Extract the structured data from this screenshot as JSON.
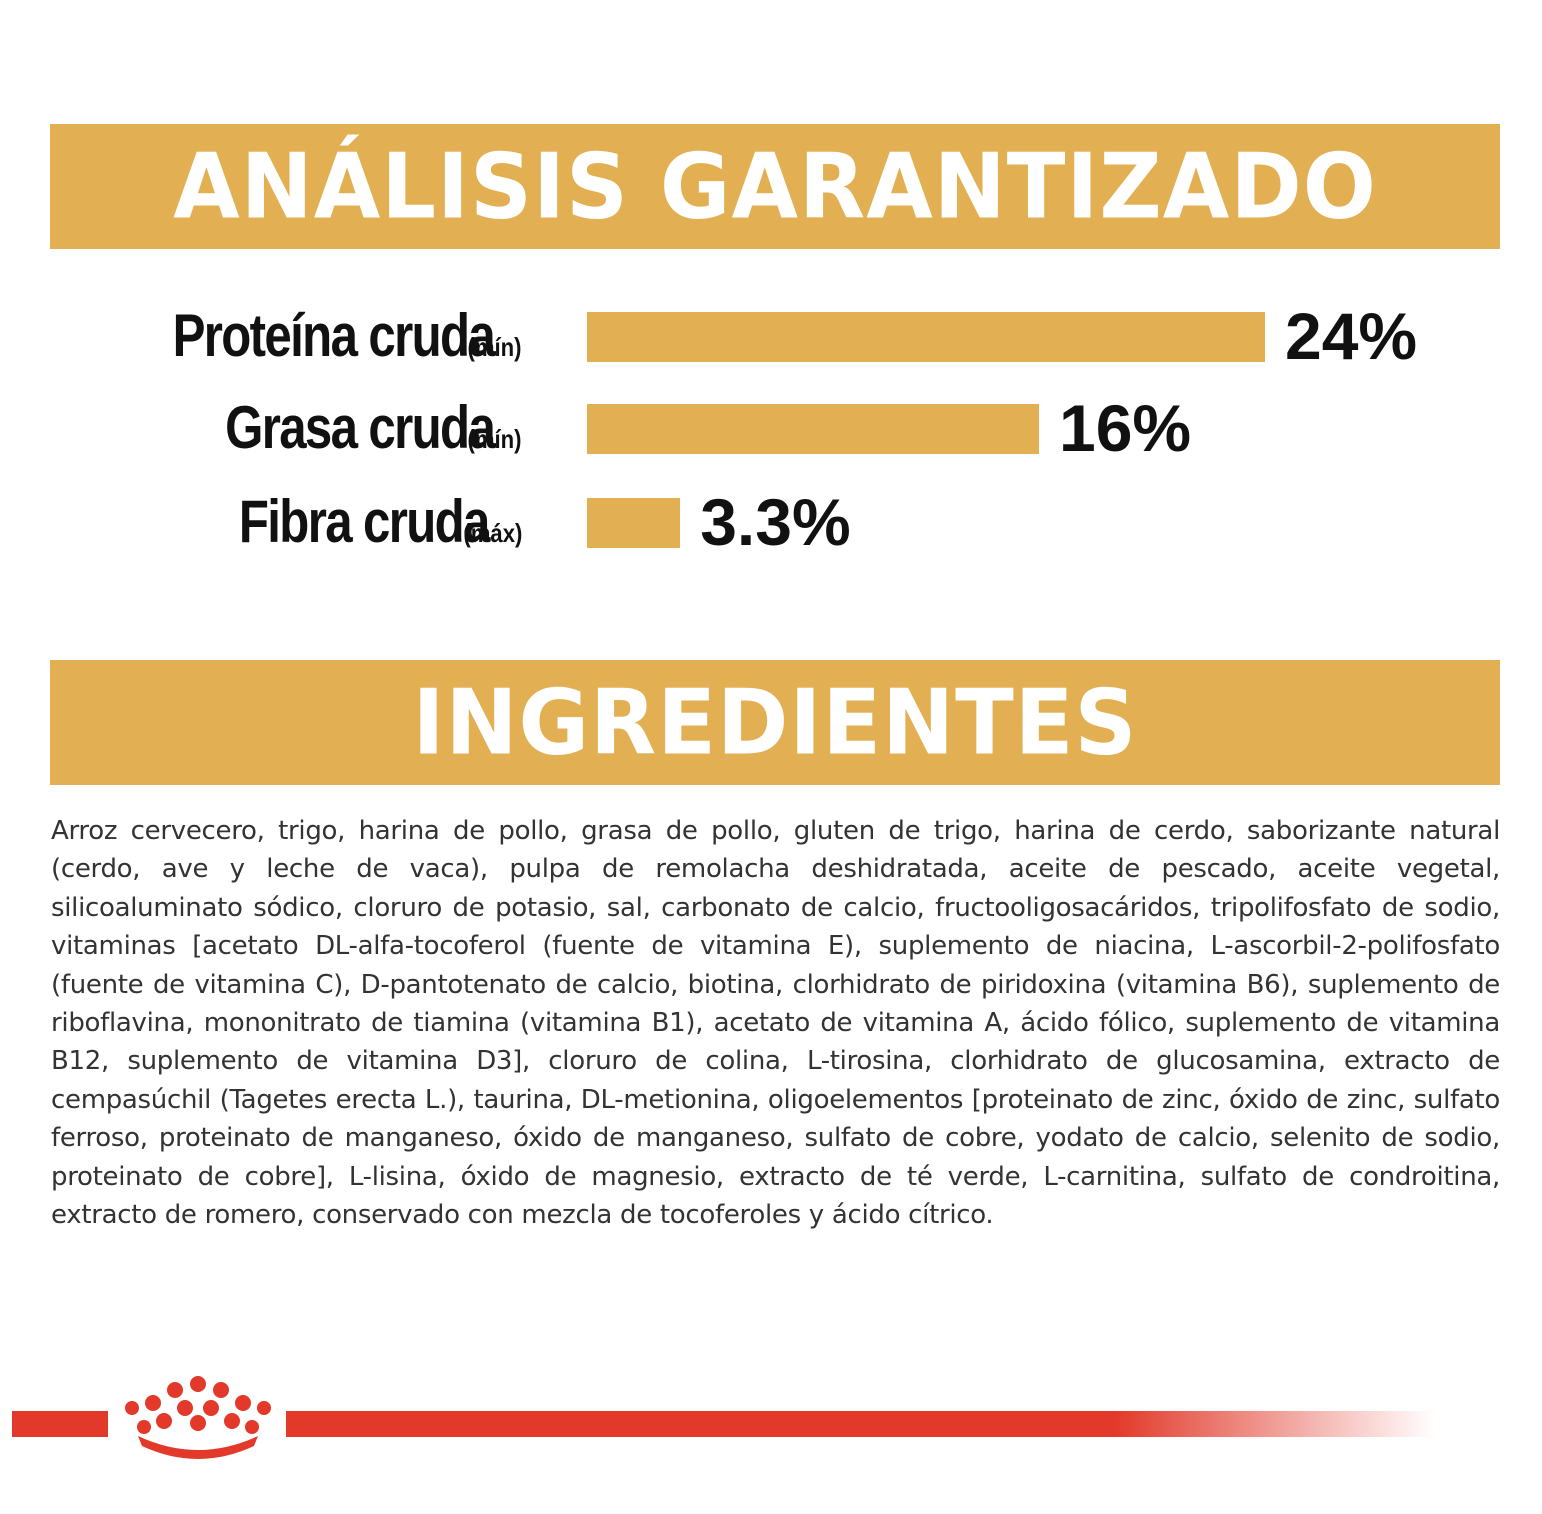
{
  "analysis": {
    "title": "ANÁLISIS GARANTIZADO",
    "rows": [
      {
        "name": "Proteína cruda",
        "qualifier": "(mín)",
        "value": "24%",
        "percent": 24
      },
      {
        "name": "Grasa cruda",
        "qualifier": "(mín)",
        "value": "16%",
        "percent": 16
      },
      {
        "name": "Fibra cruda",
        "qualifier": "(máx)",
        "value": "3.3%",
        "percent": 3.3
      }
    ]
  },
  "ingredients": {
    "title": "INGREDIENTES",
    "text": "Arroz cervecero, trigo, harina de pollo, grasa de pollo, gluten de trigo, harina de cerdo, saborizante natural (cerdo, ave y leche de vaca), pulpa de remolacha deshidratada, aceite de pescado, aceite vegetal, silicoaluminato sódico, cloruro de potasio, sal, carbonato de calcio, fructooligosacáridos, tripolifosfato de sodio, vitaminas [acetato DL-alfa-tocoferol (fuente de vitamina E), suplemento de niacina, L-ascorbil-2-polifosfato (fuente de vitamina C), D-pantotenato de calcio, biotina, clorhidrato de piridoxina (vitamina B6), suplemento de riboflavina, mononitrato de tiamina (vitamina B1), acetato de vitamina A, ácido fólico, suplemento de vitamina B12, suplemento de vitamina D3], cloruro de colina, L-tirosina, clorhidrato de glucosamina, extracto de cempasúchil (Tagetes erecta L.), taurina, DL-metionina, oligoelementos [proteinato de zinc, óxido de zinc, sulfato ferroso, proteinato de manganeso, óxido de manganeso, sulfato de cobre, yodato de calcio, selenito de sodio, proteinato de cobre], L-lisina, óxido de magnesio, extracto de té verde, L-carnitina, sulfato de condroitina, extracto de romero, conservado con mezcla de tocoferoles y ácido cítrico."
  },
  "footer": {
    "logo": "royal-canin-crown-icon",
    "accent_color": "#e2392a"
  },
  "colors": {
    "banner": "#e2b052",
    "bar": "#e2b052",
    "text": "#111111"
  }
}
